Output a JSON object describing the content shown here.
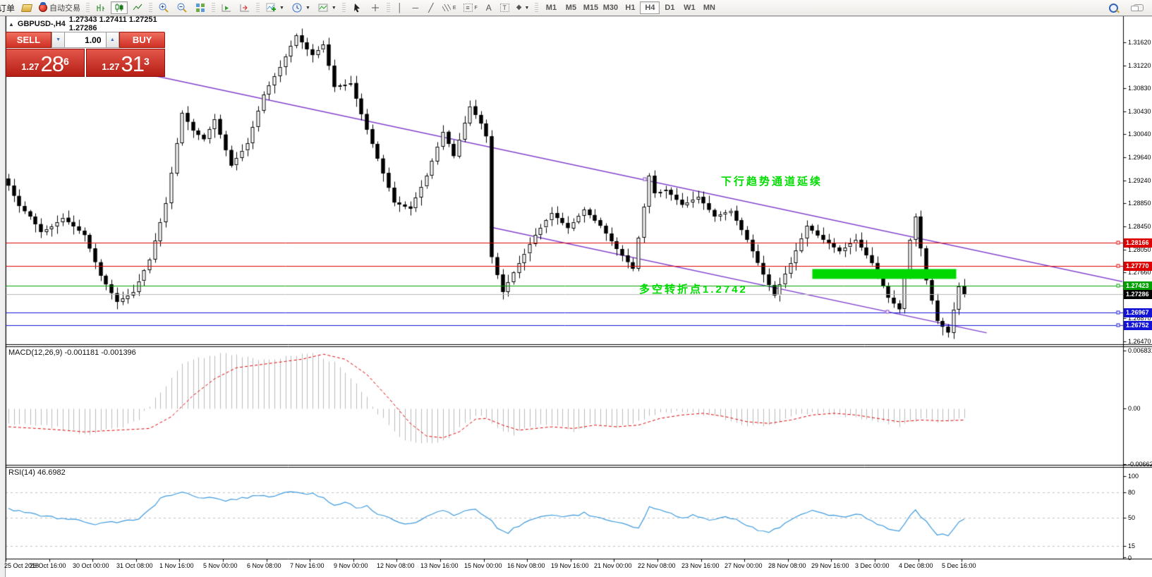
{
  "toolbar": {
    "order_label": "订单",
    "autotrade_label": "自动交易",
    "timeframes": [
      "M1",
      "M5",
      "M15",
      "M30",
      "H1",
      "H4",
      "D1",
      "W1",
      "MN"
    ],
    "active_timeframe": "H4"
  },
  "chart": {
    "symbol_period": "GBPUSD-,H4",
    "ohlc": "1.27343 1.27411 1.27251 1.27286"
  },
  "oneclick": {
    "sell_label": "SELL",
    "buy_label": "BUY",
    "volume": "1.00",
    "sell_small": "1.27",
    "sell_big": "28",
    "sell_sup": "6",
    "buy_small": "1.27",
    "buy_big": "31",
    "buy_sup": "3"
  },
  "indicators": {
    "macd_label": "MACD(12,26,9) -0.001181 -0.001396",
    "rsi_label": "RSI(14) 46.6982"
  },
  "annotations": {
    "channel_text": "下行趋势通道延续",
    "pivot_text": "多空转折点1.2742"
  },
  "colors": {
    "level_red": "#dd0000",
    "level_green": "#00a000",
    "level_blue": "#1313d6",
    "current_black": "#000000",
    "current_line": "#b8b8b8",
    "trendline": "#8040cc",
    "zone_green": "#00d800",
    "macd_hist": "#bbbbbb",
    "macd_signal": "#dd0000",
    "rsi_line": "#3e9ade",
    "annotation_green": "#00dd00"
  },
  "chart_data": [
    {
      "type": "candlestick",
      "symbol": "GBPUSD",
      "timeframe": "H4",
      "bars": 177,
      "price_axis_ticks": [
        "1.31620",
        "1.31220",
        "1.30830",
        "1.30430",
        "1.30040",
        "1.29640",
        "1.29240",
        "1.28850",
        "1.28450",
        "1.28050",
        "1.27660",
        "1.27270",
        "1.26870",
        "1.26470"
      ],
      "x_labels": [
        "25 Oct 2018",
        "26 Oct 16:00",
        "30 Oct 00:00",
        "31 Oct 08:00",
        "1 Nov 16:00",
        "5 Nov 00:00",
        "6 Nov 08:00",
        "7 Nov 16:00",
        "9 Nov 00:00",
        "12 Nov 08:00",
        "13 Nov 16:00",
        "15 Nov 00:00",
        "16 Nov 08:00",
        "19 Nov 16:00",
        "21 Nov 00:00",
        "22 Nov 08:00",
        "23 Nov 16:00",
        "27 Nov 00:00",
        "28 Nov 08:00",
        "29 Nov 16:00",
        "3 Dec 00:00",
        "4 Dec 08:00",
        "5 Dec 16:00"
      ],
      "close_waypoints": [
        [
          0,
          1.2915
        ],
        [
          2,
          1.288
        ],
        [
          4,
          1.2862
        ],
        [
          6,
          1.2836
        ],
        [
          8,
          1.2845
        ],
        [
          10,
          1.286
        ],
        [
          12,
          1.2845
        ],
        [
          14,
          1.283
        ],
        [
          17,
          1.276
        ],
        [
          20,
          1.2715
        ],
        [
          23,
          1.2732
        ],
        [
          26,
          1.2788
        ],
        [
          29,
          1.2885
        ],
        [
          32,
          1.304
        ],
        [
          34,
          1.301
        ],
        [
          36,
          1.2995
        ],
        [
          38,
          1.303
        ],
        [
          41,
          1.295
        ],
        [
          44,
          1.2988
        ],
        [
          47,
          1.3072
        ],
        [
          50,
          1.312
        ],
        [
          53,
          1.3174
        ],
        [
          55,
          1.315
        ],
        [
          56,
          1.314
        ],
        [
          58,
          1.3158
        ],
        [
          60,
          1.3085
        ],
        [
          63,
          1.3092
        ],
        [
          66,
          1.3012
        ],
        [
          68,
          1.2962
        ],
        [
          71,
          1.2886
        ],
        [
          74,
          1.2876
        ],
        [
          77,
          1.2932
        ],
        [
          80,
          1.3008
        ],
        [
          82,
          1.2966
        ],
        [
          85,
          1.3052
        ],
        [
          87,
          1.3022
        ],
        [
          88,
          1.3
        ],
        [
          89,
          1.2792
        ],
        [
          91,
          1.2732
        ],
        [
          94,
          1.2782
        ],
        [
          97,
          1.283
        ],
        [
          100,
          1.2868
        ],
        [
          103,
          1.2842
        ],
        [
          106,
          1.2874
        ],
        [
          109,
          1.2846
        ],
        [
          112,
          1.2806
        ],
        [
          115,
          1.2772
        ],
        [
          118,
          1.2932
        ],
        [
          119,
          1.2902
        ],
        [
          121,
          1.2908
        ],
        [
          124,
          1.2882
        ],
        [
          127,
          1.2896
        ],
        [
          130,
          1.2862
        ],
        [
          133,
          1.2872
        ],
        [
          136,
          1.2822
        ],
        [
          139,
          1.2762
        ],
        [
          141,
          1.2726
        ],
        [
          144,
          1.2782
        ],
        [
          147,
          1.2846
        ],
        [
          150,
          1.2822
        ],
        [
          153,
          1.2802
        ],
        [
          156,
          1.2822
        ],
        [
          159,
          1.2782
        ],
        [
          162,
          1.2722
        ],
        [
          164,
          1.2702
        ],
        [
          166,
          1.2822
        ],
        [
          167,
          1.2862
        ],
        [
          169,
          1.2752
        ],
        [
          171,
          1.2682
        ],
        [
          173,
          1.2662
        ],
        [
          175,
          1.2742
        ],
        [
          176,
          1.27286
        ]
      ],
      "levels": [
        {
          "price": 1.28166,
          "label": "1.28166",
          "color": "#dd0000",
          "style": "line"
        },
        {
          "price": 1.2777,
          "label": "1.27770",
          "color": "#dd0000",
          "style": "line"
        },
        {
          "price": 1.27423,
          "label": "1.27423",
          "color": "#00a000",
          "style": "line"
        },
        {
          "price": 1.27286,
          "label": "1.27286",
          "color": "#000000",
          "style": "current"
        },
        {
          "price": 1.26967,
          "label": "1.26967",
          "color": "#1313d6",
          "style": "line"
        },
        {
          "price": 1.26752,
          "label": "1.26752",
          "color": "#1313d6",
          "style": "line"
        }
      ],
      "trendlines": [
        {
          "x1_bar": 20.4,
          "p1": 1.31173,
          "x2_bar": 205.7,
          "p2": 1.27486,
          "handle_bar": 117.1,
          "handle_p": 1.29263
        },
        {
          "x1_bar": 88.6,
          "p1": 1.2844,
          "x2_bar": 180.1,
          "p2": 1.26615,
          "handle_bar": 161.9,
          "handle_p": 1.26978
        }
      ],
      "highlight_zone": {
        "bar_start": 148,
        "bar_end": 174.5,
        "price_top": 1.27715,
        "price_bottom": 1.27545
      }
    },
    {
      "type": "macd",
      "name": "MACD(12,26,9)",
      "values_label": "-0.001181 -0.001396",
      "axis_ticks": [
        {
          "v": 0.006831,
          "label": "0.006831"
        },
        {
          "v": 0,
          "label": "0.00"
        },
        {
          "v": -0.006624,
          "label": "-0.006624"
        }
      ],
      "range": [
        -0.006624,
        0.006831
      ],
      "macd_waypoints": [
        [
          0,
          -0.0018
        ],
        [
          8,
          -0.0022
        ],
        [
          14,
          -0.003
        ],
        [
          20,
          -0.0024
        ],
        [
          24,
          -0.0012
        ],
        [
          28,
          0.002
        ],
        [
          32,
          0.0052
        ],
        [
          36,
          0.0062
        ],
        [
          40,
          0.0066
        ],
        [
          44,
          0.006
        ],
        [
          48,
          0.0058
        ],
        [
          52,
          0.0062
        ],
        [
          56,
          0.0066
        ],
        [
          60,
          0.0055
        ],
        [
          64,
          0.003
        ],
        [
          68,
          -0.0005
        ],
        [
          72,
          -0.0035
        ],
        [
          76,
          -0.0042
        ],
        [
          80,
          -0.0038
        ],
        [
          84,
          -0.0018
        ],
        [
          86,
          -0.0008
        ],
        [
          88,
          -0.001
        ],
        [
          90,
          -0.0024
        ],
        [
          93,
          -0.003
        ],
        [
          96,
          -0.0022
        ],
        [
          100,
          -0.0018
        ],
        [
          104,
          -0.0026
        ],
        [
          108,
          -0.0018
        ],
        [
          112,
          -0.0024
        ],
        [
          116,
          -0.0014
        ],
        [
          120,
          -0.0006
        ],
        [
          124,
          -0.0004
        ],
        [
          128,
          -0.0008
        ],
        [
          132,
          -0.0012
        ],
        [
          136,
          -0.002
        ],
        [
          140,
          -0.002
        ],
        [
          144,
          -0.001
        ],
        [
          148,
          -0.0005
        ],
        [
          152,
          -0.0007
        ],
        [
          156,
          -0.001
        ],
        [
          160,
          -0.0016
        ],
        [
          164,
          -0.002
        ],
        [
          168,
          -0.0012
        ],
        [
          172,
          -0.0016
        ],
        [
          176,
          -0.0012
        ]
      ],
      "signal_waypoints": [
        [
          0,
          -0.0022
        ],
        [
          8,
          -0.0025
        ],
        [
          14,
          -0.0028
        ],
        [
          20,
          -0.0026
        ],
        [
          26,
          -0.0024
        ],
        [
          30,
          -0.001
        ],
        [
          34,
          0.0015
        ],
        [
          38,
          0.0035
        ],
        [
          42,
          0.0048
        ],
        [
          48,
          0.0053
        ],
        [
          54,
          0.0058
        ],
        [
          58,
          0.0064
        ],
        [
          62,
          0.0058
        ],
        [
          66,
          0.004
        ],
        [
          70,
          0.0012
        ],
        [
          74,
          -0.0018
        ],
        [
          77,
          -0.0033
        ],
        [
          80,
          -0.0035
        ],
        [
          83,
          -0.0028
        ],
        [
          86,
          -0.0013
        ],
        [
          88,
          -0.0012
        ],
        [
          91,
          -0.002
        ],
        [
          94,
          -0.0026
        ],
        [
          97,
          -0.0024
        ],
        [
          100,
          -0.0022
        ],
        [
          104,
          -0.0024
        ],
        [
          108,
          -0.002
        ],
        [
          112,
          -0.0022
        ],
        [
          116,
          -0.002
        ],
        [
          120,
          -0.0012
        ],
        [
          124,
          -0.0008
        ],
        [
          128,
          -0.0006
        ],
        [
          132,
          -0.001
        ],
        [
          136,
          -0.0016
        ],
        [
          140,
          -0.0018
        ],
        [
          144,
          -0.0014
        ],
        [
          148,
          -0.0008
        ],
        [
          152,
          -0.0006
        ],
        [
          156,
          -0.0008
        ],
        [
          160,
          -0.0012
        ],
        [
          164,
          -0.0016
        ],
        [
          168,
          -0.0014
        ],
        [
          172,
          -0.0015
        ],
        [
          176,
          -0.0014
        ]
      ]
    },
    {
      "type": "rsi",
      "name": "RSI(14)",
      "current": 46.6982,
      "axis_ticks": [
        {
          "v": 100,
          "label": "100"
        },
        {
          "v": 80,
          "label": "80"
        },
        {
          "v": 50,
          "label": "50"
        },
        {
          "v": 15,
          "label": "15"
        },
        {
          "v": 0,
          "label": "0"
        }
      ],
      "dashed_levels": [
        80,
        50,
        15
      ],
      "range": [
        0,
        100
      ],
      "waypoints": [
        [
          0,
          60
        ],
        [
          4,
          55
        ],
        [
          8,
          50
        ],
        [
          12,
          47
        ],
        [
          16,
          42
        ],
        [
          20,
          44
        ],
        [
          24,
          48
        ],
        [
          26,
          60
        ],
        [
          28,
          72
        ],
        [
          30,
          78
        ],
        [
          32,
          80
        ],
        [
          34,
          76
        ],
        [
          36,
          72
        ],
        [
          38,
          74
        ],
        [
          40,
          70
        ],
        [
          42,
          72
        ],
        [
          44,
          74
        ],
        [
          46,
          77
        ],
        [
          48,
          75
        ],
        [
          50,
          78
        ],
        [
          52,
          80
        ],
        [
          54,
          78
        ],
        [
          56,
          79
        ],
        [
          58,
          74
        ],
        [
          60,
          65
        ],
        [
          62,
          68
        ],
        [
          64,
          62
        ],
        [
          66,
          64
        ],
        [
          68,
          55
        ],
        [
          70,
          50
        ],
        [
          72,
          45
        ],
        [
          74,
          42
        ],
        [
          76,
          48
        ],
        [
          78,
          55
        ],
        [
          80,
          58
        ],
        [
          82,
          52
        ],
        [
          84,
          58
        ],
        [
          86,
          60
        ],
        [
          88,
          52
        ],
        [
          90,
          38
        ],
        [
          92,
          32
        ],
        [
          94,
          40
        ],
        [
          96,
          48
        ],
        [
          98,
          50
        ],
        [
          100,
          54
        ],
        [
          102,
          50
        ],
        [
          104,
          52
        ],
        [
          106,
          55
        ],
        [
          108,
          50
        ],
        [
          110,
          48
        ],
        [
          112,
          44
        ],
        [
          114,
          40
        ],
        [
          116,
          38
        ],
        [
          118,
          62
        ],
        [
          120,
          58
        ],
        [
          122,
          55
        ],
        [
          124,
          50
        ],
        [
          126,
          52
        ],
        [
          128,
          50
        ],
        [
          130,
          46
        ],
        [
          132,
          50
        ],
        [
          134,
          48
        ],
        [
          136,
          40
        ],
        [
          138,
          35
        ],
        [
          140,
          32
        ],
        [
          142,
          38
        ],
        [
          144,
          48
        ],
        [
          146,
          55
        ],
        [
          148,
          58
        ],
        [
          150,
          54
        ],
        [
          152,
          52
        ],
        [
          154,
          50
        ],
        [
          156,
          54
        ],
        [
          158,
          50
        ],
        [
          160,
          42
        ],
        [
          162,
          36
        ],
        [
          164,
          33
        ],
        [
          166,
          52
        ],
        [
          167,
          58
        ],
        [
          169,
          44
        ],
        [
          171,
          30
        ],
        [
          173,
          28
        ],
        [
          175,
          45
        ],
        [
          176,
          46.7
        ]
      ]
    }
  ]
}
